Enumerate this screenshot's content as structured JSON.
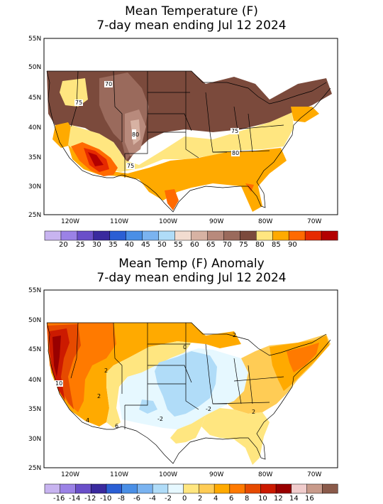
{
  "panel1": {
    "title_line1": "Mean Temperature (F)",
    "title_line2": "7-day mean ending Jul 12 2024",
    "lat_labels": [
      "55N",
      "50N",
      "45N",
      "40N",
      "35N",
      "30N",
      "25N"
    ],
    "lon_labels": [
      "120W",
      "110W",
      "100W",
      "90W",
      "80W",
      "70W"
    ],
    "colorbar_colors": [
      "#c8b4f0",
      "#9b82e6",
      "#6a4fc9",
      "#3a2a9e",
      "#2b5fd4",
      "#4a8fe6",
      "#7ab3f0",
      "#b0dcf8",
      "#f2dcd0",
      "#d7b2a3",
      "#b88a7c",
      "#9a6a5c",
      "#7b4a3c",
      "#ffe680",
      "#ffaa00",
      "#ff6a00",
      "#e62a00",
      "#b30000"
    ],
    "colorbar_ticks": [
      "20",
      "25",
      "30",
      "35",
      "40",
      "45",
      "50",
      "55",
      "60",
      "65",
      "70",
      "75",
      "80",
      "85",
      "90"
    ],
    "contour_labels": [
      "70",
      "75",
      "80",
      "75",
      "75",
      "80"
    ]
  },
  "panel2": {
    "title_line1": "Mean Temp (F) Anomaly",
    "title_line2": "7-day mean ending Jul 12 2024",
    "lat_labels": [
      "55N",
      "50N",
      "45N",
      "40N",
      "35N",
      "30N",
      "25N"
    ],
    "lon_labels": [
      "120W",
      "110W",
      "100W",
      "90W",
      "80W",
      "70W"
    ],
    "colorbar_colors": [
      "#c8b4f0",
      "#9b82e6",
      "#6a4fc9",
      "#3a2a9e",
      "#2b5fd4",
      "#4a8fe6",
      "#7ab3f0",
      "#b0dcf8",
      "#e6f8ff",
      "#ffe680",
      "#ffcc55",
      "#ffaa00",
      "#ff7a00",
      "#e64a00",
      "#cc1a00",
      "#990000",
      "#f0cccc",
      "#c89a8a",
      "#8a5a4a"
    ],
    "colorbar_ticks": [
      "-16",
      "-14",
      "-12",
      "-10",
      "-8",
      "-6",
      "-4",
      "-2",
      "0",
      "2",
      "4",
      "6",
      "8",
      "10",
      "12",
      "14",
      "16"
    ],
    "contour_labels": [
      "10",
      "2",
      "2",
      "0",
      "2",
      "-2",
      "-2",
      "2",
      "6",
      "4"
    ]
  }
}
